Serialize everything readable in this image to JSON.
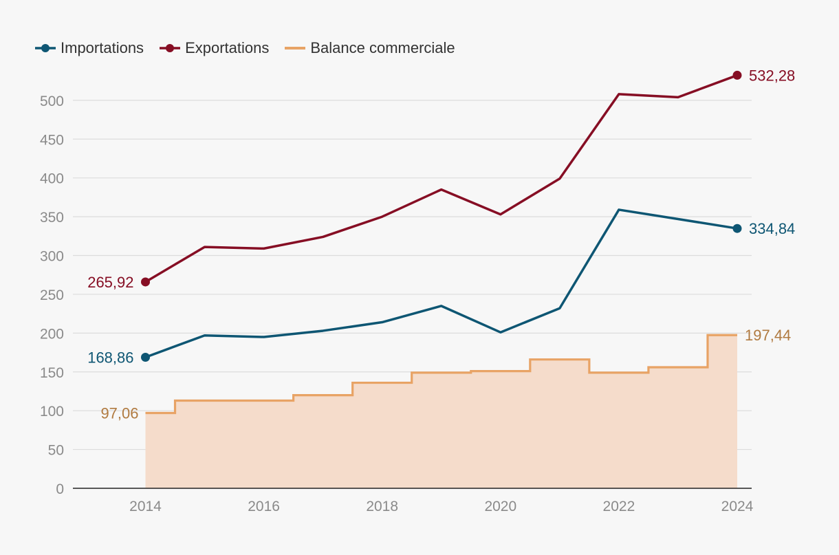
{
  "chart_data": {
    "type": "line",
    "title": "",
    "xlabel": "",
    "ylabel": "",
    "x": [
      2014,
      2015,
      2016,
      2017,
      2018,
      2019,
      2020,
      2021,
      2022,
      2023,
      2024
    ],
    "xticks": [
      "2014",
      "2016",
      "2018",
      "2020",
      "2022",
      "2024"
    ],
    "yticks": [
      "0",
      "50",
      "100",
      "150",
      "200",
      "250",
      "300",
      "350",
      "400",
      "450",
      "500"
    ],
    "xlim": [
      2012.9,
      2024.25
    ],
    "ylim": [
      0,
      560
    ],
    "grid": true,
    "legend_position": "top-left",
    "series": [
      {
        "name": "Importations",
        "kind": "line",
        "color": "#0e5673",
        "values": [
          168.86,
          197,
          195,
          203,
          214,
          235,
          201,
          232,
          359,
          347,
          334.84
        ],
        "start_label": "168,86",
        "end_label": "334,84"
      },
      {
        "name": "Exportations",
        "kind": "line",
        "color": "#860e24",
        "values": [
          265.92,
          311,
          309,
          324,
          350,
          385,
          353,
          399,
          508,
          504,
          532.28
        ],
        "start_label": "265,92",
        "end_label": "532,28"
      },
      {
        "name": "Balance commerciale",
        "kind": "step-area",
        "color": "#e8a365",
        "label_color": "#b07a40",
        "fill": "#f5dccb",
        "values": [
          97.06,
          113,
          113,
          120,
          136,
          149,
          151,
          166,
          149,
          156,
          197.44
        ],
        "start_label": "97,06",
        "end_label": "197,44"
      }
    ]
  }
}
